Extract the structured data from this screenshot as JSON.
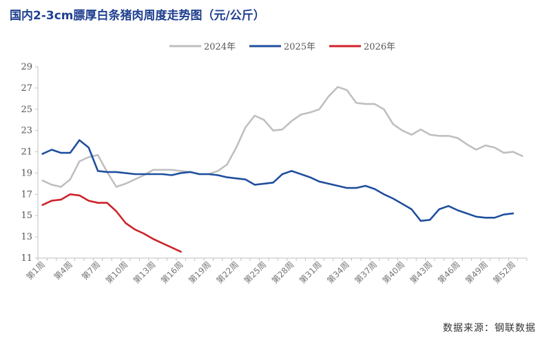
{
  "title": "国内2-3cm膘厚白条猪肉周度走势图（元/公斤）",
  "source": "数据来源：钢联数据",
  "chart_data": {
    "type": "line",
    "title": "国内2-3cm膘厚白条猪肉周度走势图（元/公斤）",
    "xlabel": "",
    "ylabel": "",
    "ylim": [
      11,
      29
    ],
    "yticks": [
      11,
      13,
      15,
      17,
      19,
      21,
      23,
      25,
      27,
      29
    ],
    "x_tick_labels": [
      "第1周",
      "第4周",
      "第7周",
      "第10周",
      "第13周",
      "第16周",
      "第19周",
      "第22周",
      "第25周",
      "第28周",
      "第31周",
      "第34周",
      "第37周",
      "第40周",
      "第43周",
      "第46周",
      "第49周",
      "第52周"
    ],
    "grid": false,
    "legend_position": "top",
    "series": [
      {
        "name": "2024年",
        "color": "#bfbfbf",
        "values": [
          18.3,
          17.9,
          17.7,
          18.4,
          20.1,
          20.5,
          20.7,
          19.1,
          17.7,
          18.0,
          18.4,
          18.8,
          19.3,
          19.3,
          19.3,
          19.2,
          19.1,
          18.9,
          18.9,
          19.2,
          19.8,
          21.4,
          23.3,
          24.4,
          24.0,
          23.0,
          23.1,
          23.9,
          24.5,
          24.7,
          25.0,
          26.2,
          27.1,
          26.8,
          25.6,
          25.5,
          25.5,
          25.0,
          23.6,
          23.0,
          22.6,
          23.1,
          22.6,
          22.5,
          22.5,
          22.3,
          21.7,
          21.2,
          21.6,
          21.4,
          20.9,
          21.0,
          20.6
        ]
      },
      {
        "name": "2025年",
        "color": "#1f4e9e",
        "values": [
          20.8,
          21.2,
          20.9,
          20.9,
          22.1,
          21.4,
          19.2,
          19.1,
          19.1,
          19.0,
          18.9,
          18.9,
          18.9,
          18.9,
          18.8,
          19.0,
          19.1,
          18.9,
          18.9,
          18.8,
          18.6,
          18.5,
          18.4,
          17.9,
          18.0,
          18.1,
          18.9,
          19.2,
          18.9,
          18.6,
          18.2,
          18.0,
          17.8,
          17.6,
          17.6,
          17.8,
          17.5,
          17.0,
          16.6,
          16.1,
          15.6,
          14.5,
          14.6,
          15.6,
          15.9,
          15.5,
          15.2,
          14.9,
          14.8,
          14.8,
          15.1,
          15.2
        ]
      },
      {
        "name": "2026年",
        "color": "#cc2229",
        "values": [
          16.0,
          16.4,
          16.5,
          17.0,
          16.9,
          16.4,
          16.2,
          16.2,
          15.4,
          14.3,
          13.7,
          13.3,
          12.8,
          12.4,
          12.0,
          11.6
        ]
      }
    ]
  }
}
